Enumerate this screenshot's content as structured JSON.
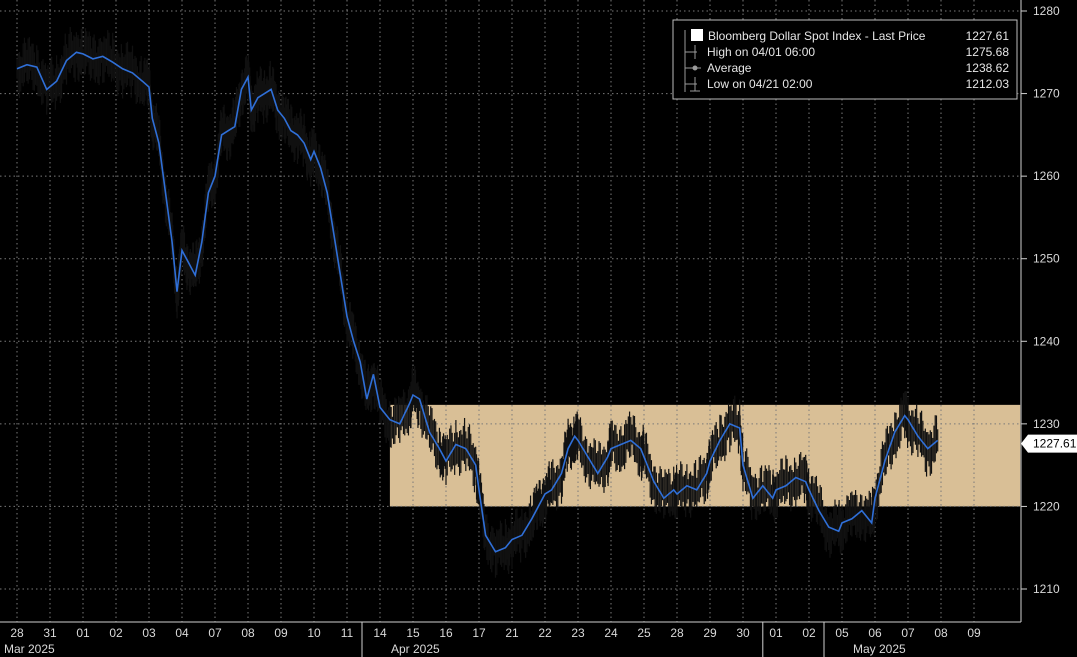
{
  "chart_data": {
    "type": "line",
    "title": "",
    "xlabel": "",
    "ylabel": "",
    "ylim": [
      1205,
      1282
    ],
    "y_ticks": [
      1210,
      1220,
      1230,
      1240,
      1250,
      1260,
      1270,
      1280
    ],
    "grid": true,
    "legend_position": "top-right",
    "x_ticks": [
      "28",
      "31",
      "01",
      "02",
      "03",
      "04",
      "07",
      "08",
      "09",
      "10",
      "11",
      "14",
      "15",
      "16",
      "17",
      "21",
      "22",
      "23",
      "24",
      "25",
      "28",
      "29",
      "30",
      "01",
      "02",
      "05",
      "06",
      "07",
      "08",
      "09"
    ],
    "month_labels": [
      {
        "label": "Mar 2025",
        "at_tick": 0
      },
      {
        "label": "Apr 2025",
        "at_tick": 11
      },
      {
        "label": "May 2025",
        "at_tick": 25
      }
    ],
    "legend": {
      "title": "Bloomberg Dollar Spot Index - Last Price",
      "last": "1227.61",
      "items": [
        {
          "label": "High on 04/01 06:00",
          "value": "1275.68"
        },
        {
          "label": "Average",
          "value": "1238.62"
        },
        {
          "label": "Low on 04/21 02:00",
          "value": "1212.03"
        }
      ]
    },
    "last_price_label": "1227.61",
    "highlight_band": {
      "y_from": 1220,
      "y_to": 1232.3,
      "x_from_tick": 11.3,
      "x_to_tick": 30.4,
      "color": "#ffe0b0"
    },
    "series": [
      {
        "color": "#2f6fd8",
        "points": [
          [
            0,
            1273
          ],
          [
            0.3,
            1273.5
          ],
          [
            0.6,
            1273.2
          ],
          [
            0.9,
            1270.5
          ],
          [
            1.2,
            1271.5
          ],
          [
            1.5,
            1274
          ],
          [
            1.8,
            1275
          ],
          [
            2.0,
            1274.8
          ],
          [
            2.3,
            1274.2
          ],
          [
            2.6,
            1274.5
          ],
          [
            2.9,
            1273.8
          ],
          [
            3.2,
            1273
          ],
          [
            3.5,
            1272.5
          ],
          [
            3.8,
            1271.5
          ],
          [
            4.0,
            1270.8
          ],
          [
            4.1,
            1267
          ],
          [
            4.3,
            1264
          ],
          [
            4.5,
            1258
          ],
          [
            4.7,
            1252
          ],
          [
            4.85,
            1246
          ],
          [
            5.0,
            1251
          ],
          [
            5.2,
            1249.5
          ],
          [
            5.4,
            1248
          ],
          [
            5.6,
            1252
          ],
          [
            5.8,
            1258
          ],
          [
            6.0,
            1260
          ],
          [
            6.2,
            1265
          ],
          [
            6.4,
            1265.5
          ],
          [
            6.6,
            1266
          ],
          [
            6.8,
            1270.5
          ],
          [
            7.0,
            1272
          ],
          [
            7.1,
            1268
          ],
          [
            7.3,
            1269.5
          ],
          [
            7.5,
            1270
          ],
          [
            7.7,
            1270.5
          ],
          [
            7.9,
            1268
          ],
          [
            8.1,
            1267
          ],
          [
            8.3,
            1265.5
          ],
          [
            8.5,
            1265
          ],
          [
            8.7,
            1264
          ],
          [
            8.9,
            1262
          ],
          [
            9.0,
            1263
          ],
          [
            9.2,
            1261
          ],
          [
            9.4,
            1258
          ],
          [
            9.6,
            1253
          ],
          [
            9.8,
            1248
          ],
          [
            10.0,
            1243
          ],
          [
            10.2,
            1240
          ],
          [
            10.4,
            1237.5
          ],
          [
            10.6,
            1233
          ],
          [
            10.8,
            1236
          ],
          [
            11.0,
            1232
          ],
          [
            11.3,
            1230.5
          ],
          [
            11.6,
            1230
          ],
          [
            11.9,
            1232.5
          ],
          [
            12.0,
            1233.5
          ],
          [
            12.2,
            1233
          ],
          [
            12.5,
            1229
          ],
          [
            12.8,
            1227
          ],
          [
            13.0,
            1225.5
          ],
          [
            13.3,
            1227.5
          ],
          [
            13.6,
            1227
          ],
          [
            13.9,
            1225
          ],
          [
            14.0,
            1222
          ],
          [
            14.2,
            1216.5
          ],
          [
            14.5,
            1214.5
          ],
          [
            14.8,
            1215
          ],
          [
            15.0,
            1216
          ],
          [
            15.3,
            1216.5
          ],
          [
            15.6,
            1218.5
          ],
          [
            15.8,
            1220
          ],
          [
            16.0,
            1221.5
          ],
          [
            16.2,
            1222
          ],
          [
            16.5,
            1224
          ],
          [
            16.7,
            1227
          ],
          [
            16.9,
            1228.5
          ],
          [
            17.0,
            1228
          ],
          [
            17.3,
            1226
          ],
          [
            17.6,
            1224
          ],
          [
            17.9,
            1226
          ],
          [
            18.0,
            1227
          ],
          [
            18.3,
            1227.5
          ],
          [
            18.6,
            1228
          ],
          [
            18.9,
            1227
          ],
          [
            19.0,
            1226
          ],
          [
            19.3,
            1223
          ],
          [
            19.6,
            1221
          ],
          [
            19.9,
            1222
          ],
          [
            20.0,
            1221.5
          ],
          [
            20.3,
            1222.5
          ],
          [
            20.6,
            1222
          ],
          [
            20.9,
            1224
          ],
          [
            21.0,
            1225.5
          ],
          [
            21.3,
            1228
          ],
          [
            21.6,
            1230
          ],
          [
            21.9,
            1229.5
          ],
          [
            22.0,
            1225
          ],
          [
            22.3,
            1221
          ],
          [
            22.6,
            1222.5
          ],
          [
            22.9,
            1221
          ],
          [
            23.0,
            1222
          ],
          [
            23.3,
            1222.5
          ],
          [
            23.6,
            1223.5
          ],
          [
            23.9,
            1223
          ],
          [
            24.0,
            1222
          ],
          [
            24.3,
            1219.5
          ],
          [
            24.6,
            1217.5
          ],
          [
            24.9,
            1217
          ],
          [
            25.0,
            1218
          ],
          [
            25.3,
            1218.5
          ],
          [
            25.6,
            1219.5
          ],
          [
            25.9,
            1218
          ],
          [
            26.0,
            1221
          ],
          [
            26.3,
            1225.5
          ],
          [
            26.6,
            1229
          ],
          [
            26.9,
            1231
          ],
          [
            27.0,
            1230.5
          ],
          [
            27.3,
            1228.5
          ],
          [
            27.6,
            1227
          ],
          [
            27.9,
            1228
          ]
        ]
      }
    ]
  }
}
